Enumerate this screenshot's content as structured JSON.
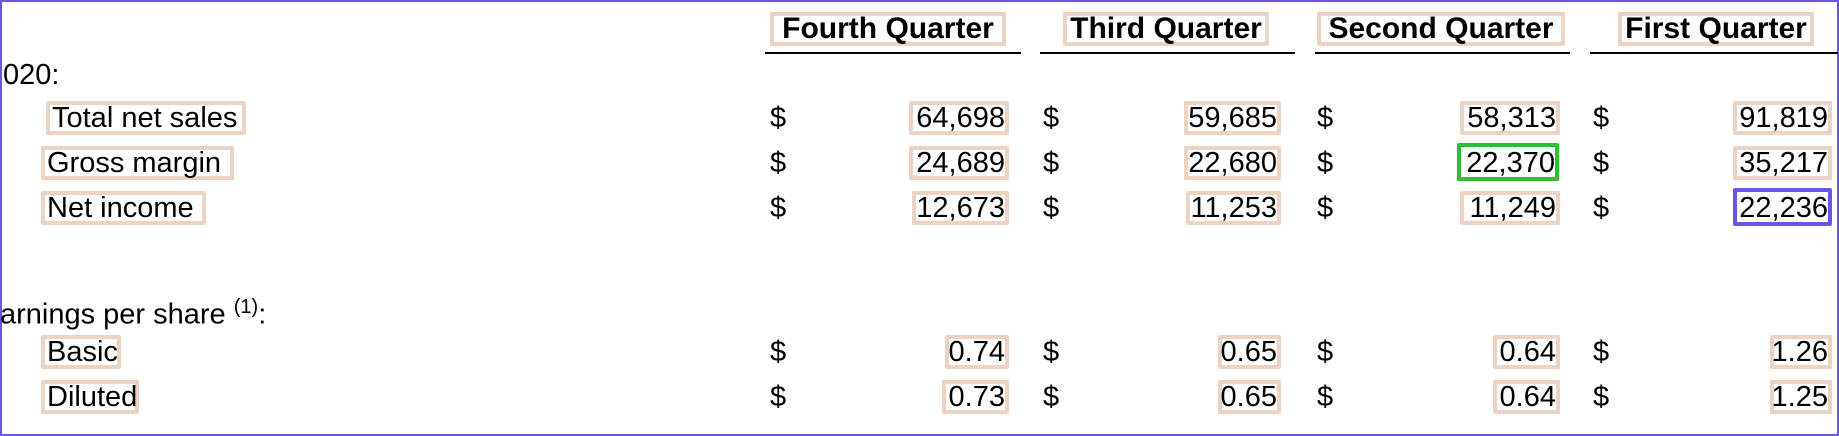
{
  "columns": [
    "Fourth Quarter",
    "Third Quarter",
    "Second Quarter",
    "First Quarter"
  ],
  "section_year": "020:",
  "rows": [
    {
      "label": "Total net sales",
      "currency": "$",
      "values": [
        "64,698",
        "59,685",
        "58,313",
        "91,819"
      ]
    },
    {
      "label": "Gross margin",
      "currency": "$",
      "values": [
        "24,689",
        "22,680",
        "22,370",
        "35,217"
      ]
    },
    {
      "label": "Net income",
      "currency": "$",
      "values": [
        "12,673",
        "11,253",
        "11,249",
        "22,236"
      ]
    }
  ],
  "eps_heading": {
    "text": "arnings per share ",
    "footnote": "(1)",
    "suffix": ":"
  },
  "eps_rows": [
    {
      "label": "Basic",
      "currency": "$",
      "values": [
        "0.74",
        "0.65",
        "0.64",
        "1.26"
      ]
    },
    {
      "label": "Diluted",
      "currency": "$",
      "values": [
        "0.73",
        "0.65",
        "0.64",
        "1.25"
      ]
    }
  ],
  "highlight_colors": {
    "default": "#edd3c4",
    "green": "#2ec02e",
    "blue": "#6b55e6"
  }
}
